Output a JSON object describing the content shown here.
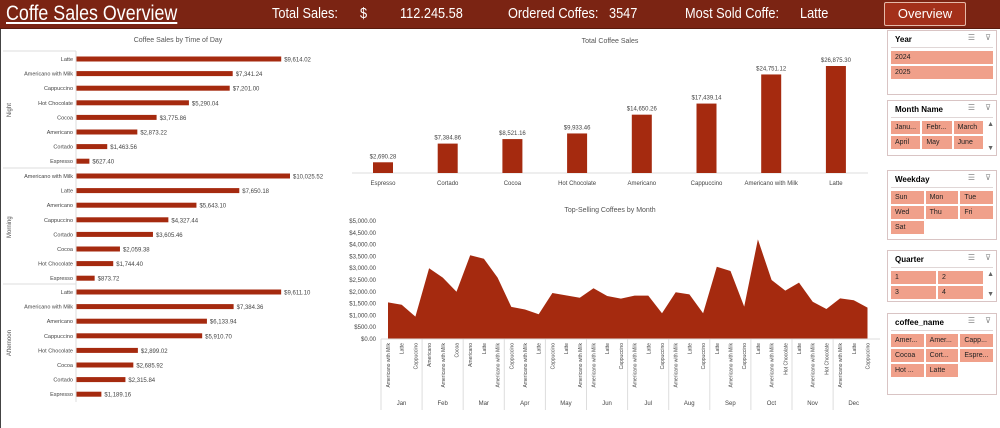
{
  "header": {
    "title": "Coffe Sales  Overview",
    "total_sales_label": "Total Sales:",
    "currency": "$",
    "total_sales_value": "112.245.58",
    "ordered_label": "Ordered Coffes:",
    "ordered_value": "3547",
    "most_sold_label": "Most Sold Coffe:",
    "most_sold_value": "Latte",
    "overview_button": "Overview"
  },
  "colors": {
    "header_bg": "#7b2413",
    "bar": "#a52a0f",
    "slicer_item": "#f0a08a"
  },
  "chart_data": [
    {
      "type": "bar",
      "orientation": "horizontal",
      "title": "Coffee Sales by Time of Day",
      "groups": [
        {
          "name": "Night",
          "categories": [
            "Latte",
            "Americano with Milk",
            "Cappuccino",
            "Hot Chocolate",
            "Cocoa",
            "Americano",
            "Cortado",
            "Espresso"
          ],
          "values": [
            9614.02,
            7341.24,
            7201.0,
            5290.04,
            3775.86,
            2873.22,
            1463.56,
            627.4
          ],
          "labels": [
            "$9,614.02",
            "$7,341.24",
            "$7,201.00",
            "$5,290.04",
            "$3,775.86",
            "$2,873.22",
            "$1,463.56",
            "$627.40"
          ]
        },
        {
          "name": "Morning",
          "categories": [
            "Americano with Milk",
            "Latte",
            "Americano",
            "Cappuccino",
            "Cortado",
            "Cocoa",
            "Hot Chocolate",
            "Espresso"
          ],
          "values": [
            10025.52,
            7650.18,
            5643.1,
            4327.44,
            3605.46,
            2059.38,
            1744.4,
            873.72
          ],
          "labels": [
            "$10,025.52",
            "$7,650.18",
            "$5,643.10",
            "$4,327.44",
            "$3,605.46",
            "$2,059.38",
            "$1,744.40",
            "$873.72"
          ]
        },
        {
          "name": "Afternoon",
          "categories": [
            "Latte",
            "Americano with Milk",
            "Americano",
            "Cappuccino",
            "Hot Chocolate",
            "Cocoa",
            "Cortado",
            "Espresso"
          ],
          "values": [
            9611.1,
            7384.36,
            6133.94,
            5910.7,
            2899.02,
            2685.92,
            2315.84,
            1189.16
          ],
          "labels": [
            "$9,611.10",
            "$7,384.36",
            "$6,133.94",
            "$5,910.70",
            "$2,899.02",
            "$2,685.92",
            "$2,315.84",
            "$1,189.16"
          ]
        }
      ]
    },
    {
      "type": "bar",
      "title": "Total Coffee Sales",
      "categories": [
        "Espresso",
        "Cortado",
        "Cocoa",
        "Hot Chocolate",
        "Americano",
        "Cappuccino",
        "Americano with Milk",
        "Latte"
      ],
      "values": [
        2690.28,
        7384.86,
        8521.16,
        9933.46,
        14650.26,
        17439.14,
        24751.12,
        26875.3
      ],
      "labels": [
        "$2,690.28",
        "$7,384.86",
        "$8,521.16",
        "$9,933.46",
        "$14,650.26",
        "$17,439.14",
        "$24,751.12",
        "$26,875.30"
      ]
    },
    {
      "type": "area",
      "title": "Top-Selling Coffees by Month",
      "ylim": [
        0,
        5000
      ],
      "yticks": [
        "$0.00",
        "$500.00",
        "$1,000.00",
        "$1,500.00",
        "$2,000.00",
        "$2,500.00",
        "$3,000.00",
        "$3,500.00",
        "$4,000.00",
        "$4,500.00",
        "$5,000.00"
      ],
      "months": [
        "Jan",
        "Feb",
        "Mar",
        "Apr",
        "May",
        "Jun",
        "Jul",
        "Aug",
        "Sep",
        "Oct",
        "Nov",
        "Dec"
      ],
      "coffees": [
        [
          "Americano with Milk",
          "Latte",
          "Cappuccino"
        ],
        [
          "Americano",
          "Americano with Milk",
          "Cocoa"
        ],
        [
          "Americano",
          "Latte",
          "Americano with Milk"
        ],
        [
          "Cappuccino",
          "Americano with Milk",
          "Latte"
        ],
        [
          "Cappuccino",
          "Latte",
          "Americano with Milk"
        ],
        [
          "Americano with Milk",
          "Latte",
          "Cappuccino"
        ],
        [
          "Americano with Milk",
          "Latte",
          "Cappuccino"
        ],
        [
          "Americano with Milk",
          "Latte",
          "Cappuccino"
        ],
        [
          "Latte",
          "Americano with Milk",
          "Cappuccino"
        ],
        [
          "Latte",
          "Americano with Milk",
          "Hot Chocolate"
        ],
        [
          "Latte",
          "Americano with Milk",
          "Hot Chocolate"
        ],
        [
          "Americano with Milk",
          "Latte",
          "Cappuccino"
        ]
      ],
      "values": [
        1550,
        1450,
        950,
        3000,
        2600,
        2000,
        3550,
        3400,
        2600,
        1360,
        1250,
        1050,
        1950,
        1850,
        1750,
        2150,
        1820,
        1710,
        1840,
        1840,
        1090,
        1980,
        1890,
        1090,
        3060,
        2880,
        1370,
        4220,
        2500,
        2050,
        2390,
        1580,
        1270,
        1720,
        1640,
        1330
      ]
    }
  ],
  "slicers": [
    {
      "title": "Year",
      "items": [
        "2024",
        "2025"
      ],
      "cols": 1
    },
    {
      "title": "Month Name",
      "items": [
        "Janu...",
        "Febr...",
        "March",
        "April",
        "May",
        "June"
      ],
      "cols": 3,
      "scroll": true
    },
    {
      "title": "Weekday",
      "items": [
        "Sun",
        "Mon",
        "Tue",
        "Wed",
        "Thu",
        "Fri",
        "Sat"
      ],
      "cols": 3
    },
    {
      "title": "Quarter",
      "items": [
        "1",
        "2",
        "3",
        "4"
      ],
      "cols": 2,
      "scroll": true
    },
    {
      "title": "coffee_name",
      "items": [
        "Amer...",
        "Amer...",
        "Capp...",
        "Cocoa",
        "Cort...",
        "Espre...",
        "Hot ...",
        "Latte"
      ],
      "cols": 3
    }
  ]
}
